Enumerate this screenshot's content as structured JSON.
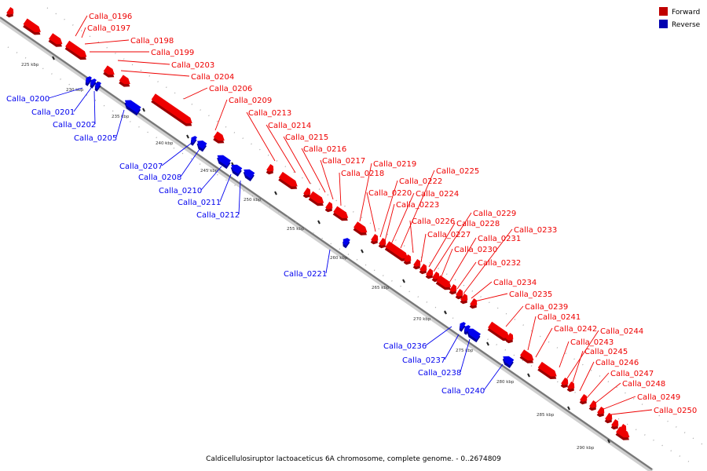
{
  "caption": "Caldicellulosiruptor lactoaceticus 6A chromosome, complete genome. - 0..2674809",
  "legend": {
    "forward_label": "Forward",
    "reverse_label": "Reverse",
    "forward_color": "#ee0000",
    "reverse_color": "#0000ee"
  },
  "ticks": [
    "225 kbp",
    "230 kbp",
    "235 kbp",
    "240 kbp",
    "245 kbp",
    "250 kbp",
    "255 kbp",
    "260 kbp",
    "265 kbp",
    "270 kbp",
    "275 kbp",
    "280 kbp",
    "285 kbp",
    "290 kbp"
  ],
  "genes": [
    {
      "name": "Calla_0196",
      "strand": "forward"
    },
    {
      "name": "Calla_0197",
      "strand": "forward"
    },
    {
      "name": "Calla_0198",
      "strand": "forward"
    },
    {
      "name": "Calla_0199",
      "strand": "forward"
    },
    {
      "name": "Calla_0203",
      "strand": "forward"
    },
    {
      "name": "Calla_0204",
      "strand": "forward"
    },
    {
      "name": "Calla_0206",
      "strand": "forward"
    },
    {
      "name": "Calla_0209",
      "strand": "forward"
    },
    {
      "name": "Calla_0213",
      "strand": "forward"
    },
    {
      "name": "Calla_0214",
      "strand": "forward"
    },
    {
      "name": "Calla_0215",
      "strand": "forward"
    },
    {
      "name": "Calla_0216",
      "strand": "forward"
    },
    {
      "name": "Calla_0217",
      "strand": "forward"
    },
    {
      "name": "Calla_0218",
      "strand": "forward"
    },
    {
      "name": "Calla_0219",
      "strand": "forward"
    },
    {
      "name": "Calla_0220",
      "strand": "forward"
    },
    {
      "name": "Calla_0222",
      "strand": "forward"
    },
    {
      "name": "Calla_0223",
      "strand": "forward"
    },
    {
      "name": "Calla_0224",
      "strand": "forward"
    },
    {
      "name": "Calla_0225",
      "strand": "forward"
    },
    {
      "name": "Calla_0226",
      "strand": "forward"
    },
    {
      "name": "Calla_0227",
      "strand": "forward"
    },
    {
      "name": "Calla_0228",
      "strand": "forward"
    },
    {
      "name": "Calla_0229",
      "strand": "forward"
    },
    {
      "name": "Calla_0230",
      "strand": "forward"
    },
    {
      "name": "Calla_0231",
      "strand": "forward"
    },
    {
      "name": "Calla_0232",
      "strand": "forward"
    },
    {
      "name": "Calla_0233",
      "strand": "forward"
    },
    {
      "name": "Calla_0234",
      "strand": "forward"
    },
    {
      "name": "Calla_0235",
      "strand": "forward"
    },
    {
      "name": "Calla_0239",
      "strand": "forward"
    },
    {
      "name": "Calla_0241",
      "strand": "forward"
    },
    {
      "name": "Calla_0242",
      "strand": "forward"
    },
    {
      "name": "Calla_0243",
      "strand": "forward"
    },
    {
      "name": "Calla_0244",
      "strand": "forward"
    },
    {
      "name": "Calla_0245",
      "strand": "forward"
    },
    {
      "name": "Calla_0246",
      "strand": "forward"
    },
    {
      "name": "Calla_0247",
      "strand": "forward"
    },
    {
      "name": "Calla_0248",
      "strand": "forward"
    },
    {
      "name": "Calla_0249",
      "strand": "forward"
    },
    {
      "name": "Calla_0250",
      "strand": "forward"
    },
    {
      "name": "Calla_0200",
      "strand": "reverse"
    },
    {
      "name": "Calla_0201",
      "strand": "reverse"
    },
    {
      "name": "Calla_0202",
      "strand": "reverse"
    },
    {
      "name": "Calla_0205",
      "strand": "reverse"
    },
    {
      "name": "Calla_0207",
      "strand": "reverse"
    },
    {
      "name": "Calla_0208",
      "strand": "reverse"
    },
    {
      "name": "Calla_0210",
      "strand": "reverse"
    },
    {
      "name": "Calla_0211",
      "strand": "reverse"
    },
    {
      "name": "Calla_0212",
      "strand": "reverse"
    },
    {
      "name": "Calla_0221",
      "strand": "reverse"
    },
    {
      "name": "Calla_0236",
      "strand": "reverse"
    },
    {
      "name": "Calla_0237",
      "strand": "reverse"
    },
    {
      "name": "Calla_0238",
      "strand": "reverse"
    },
    {
      "name": "Calla_0240",
      "strand": "reverse"
    }
  ]
}
